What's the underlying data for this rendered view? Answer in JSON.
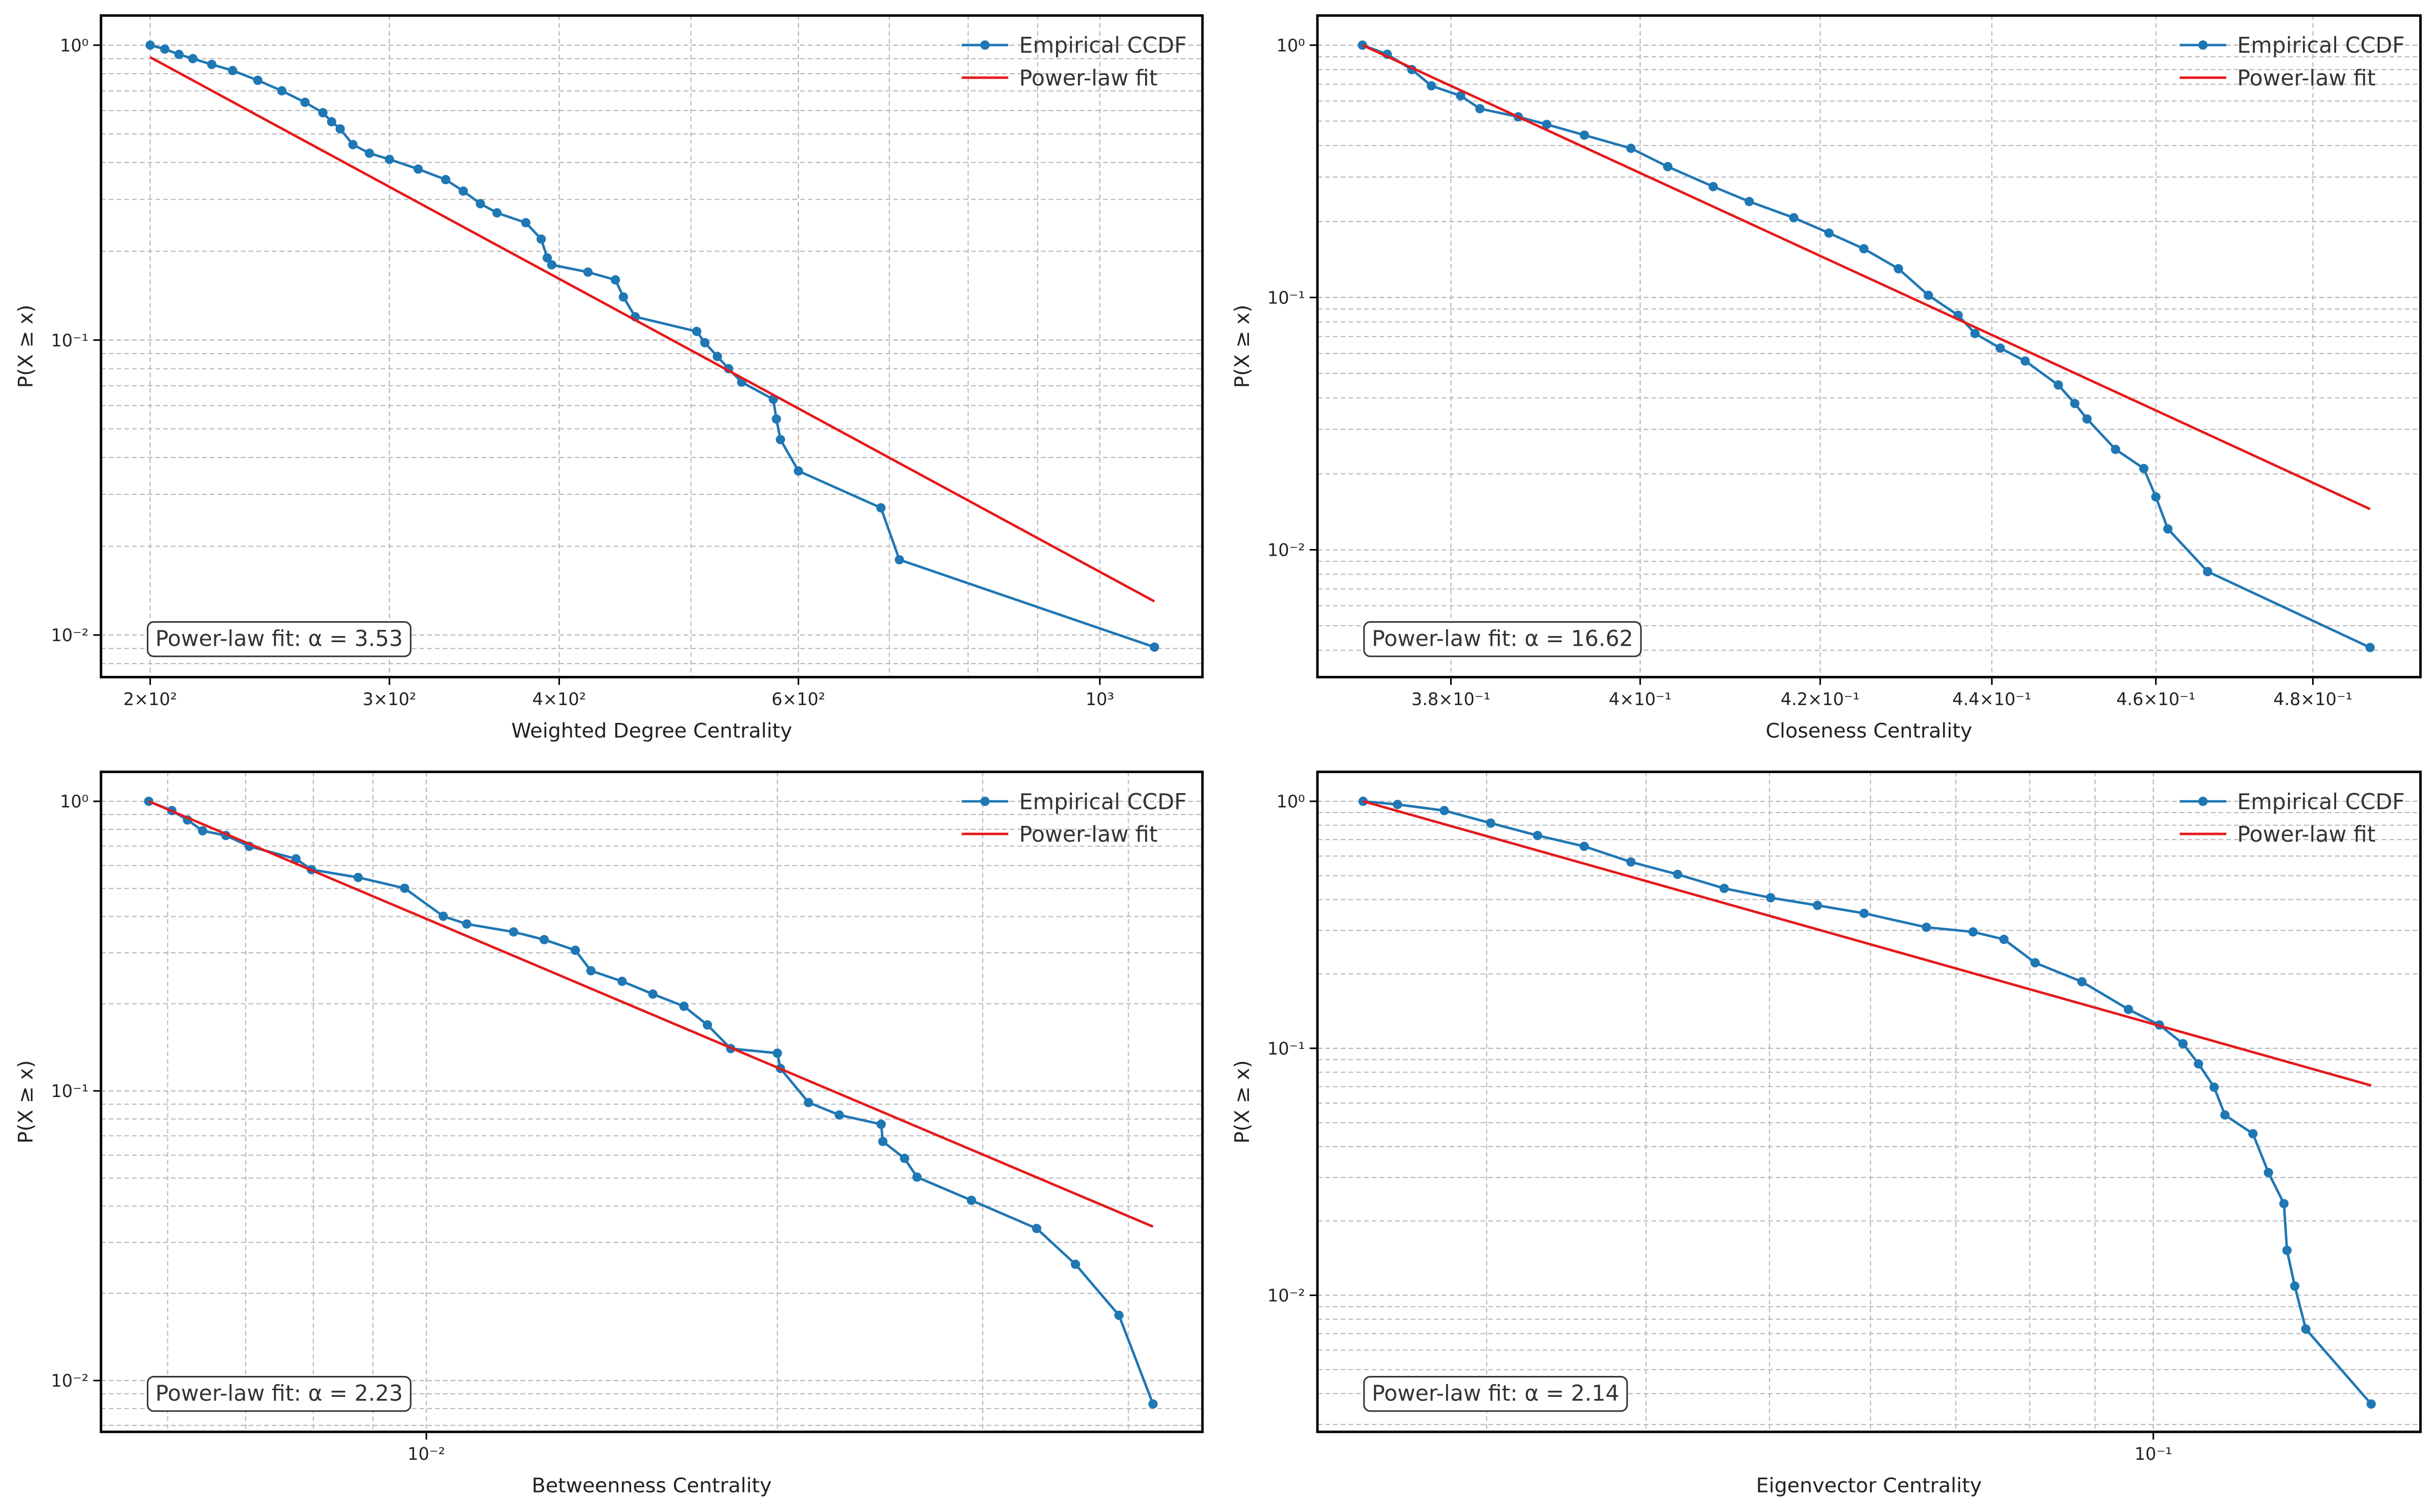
{
  "chart_data": [
    {
      "type": "line",
      "xscale": "log",
      "yscale": "log",
      "grid": true,
      "legend": "upper right",
      "xlabel": "Weighted Degree Centrality",
      "ylabel": "P(X ≥ x)",
      "annotation": "Power-law fit: α = 3.53",
      "xlim": [
        184,
        1190
      ],
      "ylim": [
        0.0072,
        1.26
      ],
      "xticks": [
        {
          "value": 200,
          "label": "2×10²"
        },
        {
          "value": 300,
          "label": "3×10²"
        },
        {
          "value": 400,
          "label": "4×10²"
        },
        {
          "value": 600,
          "label": "6×10²"
        },
        {
          "value": 1000,
          "label": "10³"
        }
      ],
      "yticks": [
        {
          "value": 1,
          "label": "10⁰"
        },
        {
          "value": 0.1,
          "label": "10⁻¹"
        },
        {
          "value": 0.01,
          "label": "10⁻²"
        }
      ],
      "series": [
        {
          "name": "Empirical CCDF",
          "color": "#1f77b4",
          "marker": true,
          "x": [
            200,
            205,
            210,
            215,
            222,
            230,
            240,
            250,
            260,
            268,
            272,
            276,
            282,
            290,
            300,
            315,
            330,
            340,
            350,
            360,
            378,
            388,
            392,
            395,
            420,
            440,
            446,
            455,
            505,
            512,
            523,
            533,
            545,
            575,
            578,
            582,
            600,
            690,
            712,
            1097
          ],
          "values": [
            1.0,
            0.97,
            0.93,
            0.9,
            0.86,
            0.82,
            0.76,
            0.7,
            0.64,
            0.59,
            0.55,
            0.52,
            0.46,
            0.43,
            0.41,
            0.38,
            0.35,
            0.32,
            0.29,
            0.27,
            0.25,
            0.22,
            0.19,
            0.18,
            0.17,
            0.16,
            0.14,
            0.12,
            0.107,
            0.098,
            0.088,
            0.08,
            0.072,
            0.063,
            0.054,
            0.046,
            0.036,
            0.027,
            0.018,
            0.0091
          ]
        },
        {
          "name": "Power-law fit",
          "color": "#e41a1c",
          "x": [
            200,
            1097
          ],
          "values": [
            0.91,
            0.013
          ]
        }
      ]
    },
    {
      "type": "line",
      "xscale": "log",
      "yscale": "log",
      "grid": true,
      "legend": "upper right",
      "xlabel": "Closeness Centrality",
      "ylabel": "P(X ≥ x)",
      "annotation": "Power-law fit: α = 16.62",
      "xlim": [
        0.3665,
        0.4942
      ],
      "ylim": [
        0.00313,
        1.31
      ],
      "xticks": [
        {
          "value": 0.38,
          "label": "3.8×10⁻¹"
        },
        {
          "value": 0.4,
          "label": "4×10⁻¹"
        },
        {
          "value": 0.42,
          "label": "4.2×10⁻¹"
        },
        {
          "value": 0.44,
          "label": "4.4×10⁻¹"
        },
        {
          "value": 0.46,
          "label": "4.6×10⁻¹"
        },
        {
          "value": 0.48,
          "label": "4.8×10⁻¹"
        }
      ],
      "yticks": [
        {
          "value": 1,
          "label": "10⁰"
        },
        {
          "value": 0.1,
          "label": "10⁻¹"
        },
        {
          "value": 0.01,
          "label": "10⁻²"
        }
      ],
      "series": [
        {
          "name": "Empirical CCDF",
          "color": "#1f77b4",
          "marker": true,
          "x": [
            0.371,
            0.3735,
            0.376,
            0.378,
            0.381,
            0.383,
            0.387,
            0.39,
            0.394,
            0.399,
            0.403,
            0.408,
            0.412,
            0.417,
            0.421,
            0.425,
            0.429,
            0.4325,
            0.436,
            0.438,
            0.441,
            0.444,
            0.448,
            0.45,
            0.4515,
            0.455,
            0.4585,
            0.46,
            0.4615,
            0.4665,
            0.4875
          ],
          "values": [
            1.0,
            0.92,
            0.8,
            0.69,
            0.63,
            0.56,
            0.52,
            0.485,
            0.44,
            0.39,
            0.33,
            0.275,
            0.24,
            0.207,
            0.18,
            0.156,
            0.13,
            0.102,
            0.085,
            0.072,
            0.063,
            0.056,
            0.045,
            0.038,
            0.033,
            0.025,
            0.021,
            0.0162,
            0.0121,
            0.0082,
            0.0041
          ]
        },
        {
          "name": "Power-law fit",
          "color": "#e41a1c",
          "x": [
            0.371,
            0.4875
          ],
          "values": [
            1.0,
            0.0145
          ]
        }
      ]
    },
    {
      "type": "line",
      "xscale": "log",
      "yscale": "log",
      "grid": true,
      "legend": "upper right",
      "xlabel": "Betweenness Centrality",
      "ylabel": "P(X ≥ x)",
      "annotation": "Power-law fit: α = 2.23",
      "xlim": [
        0.00526,
        0.0463
      ],
      "ylim": [
        0.00665,
        1.264
      ],
      "xticks": [
        {
          "value": 0.01,
          "label": "10⁻²"
        }
      ],
      "yticks": [
        {
          "value": 1,
          "label": "10⁰"
        },
        {
          "value": 0.1,
          "label": "10⁻¹"
        },
        {
          "value": 0.01,
          "label": "10⁻²"
        }
      ],
      "series": [
        {
          "name": "Empirical CCDF",
          "color": "#1f77b4",
          "marker": true,
          "x": [
            0.00578,
            0.00605,
            0.00624,
            0.00643,
            0.00673,
            0.00705,
            0.00773,
            0.00797,
            0.00874,
            0.00958,
            0.01034,
            0.01083,
            0.01188,
            0.01262,
            0.01342,
            0.01384,
            0.01472,
            0.01564,
            0.01663,
            0.01742,
            0.01824,
            0.02,
            0.02012,
            0.02127,
            0.0226,
            0.02455,
            0.02463,
            0.02571,
            0.02635,
            0.02934,
            0.03337,
            0.03603,
            0.03926,
            0.04199
          ],
          "values": [
            1.0,
            0.929,
            0.862,
            0.791,
            0.762,
            0.699,
            0.633,
            0.581,
            0.546,
            0.501,
            0.401,
            0.377,
            0.354,
            0.333,
            0.306,
            0.26,
            0.239,
            0.216,
            0.196,
            0.169,
            0.14,
            0.135,
            0.1196,
            0.0912,
            0.0826,
            0.0767,
            0.0669,
            0.0585,
            0.0504,
            0.0419,
            0.0335,
            0.0252,
            0.0168,
            0.0083
          ]
        },
        {
          "name": "Power-law fit",
          "color": "#e41a1c",
          "x": [
            0.00578,
            0.04199
          ],
          "values": [
            1.0,
            0.034
          ]
        }
      ]
    },
    {
      "type": "line",
      "xscale": "log",
      "yscale": "log",
      "grid": true,
      "legend": "upper right",
      "xlabel": "Eigenvector Centrality",
      "ylabel": "P(X ≥ x)",
      "annotation": "Power-law fit: α = 2.14",
      "xlim": [
        0.0221,
        0.162
      ],
      "ylim": [
        0.0028,
        1.316
      ],
      "xticks": [
        {
          "value": 0.1,
          "label": "10⁻¹"
        }
      ],
      "yticks": [
        {
          "value": 1,
          "label": "10⁰"
        },
        {
          "value": 0.1,
          "label": "10⁻¹"
        },
        {
          "value": 0.01,
          "label": "10⁻²"
        }
      ],
      "series": [
        {
          "name": "Empirical CCDF",
          "color": "#1f77b4",
          "marker": true,
          "x": [
            0.024,
            0.02554,
            0.02779,
            0.03022,
            0.03289,
            0.03578,
            0.03893,
            0.04235,
            0.04607,
            0.0501,
            0.05452,
            0.05931,
            0.06637,
            0.07221,
            0.07636,
            0.08078,
            0.0879,
            0.09561,
            0.1011,
            0.1055,
            0.1085,
            0.1116,
            0.1138,
            0.1197,
            0.1231,
            0.1266,
            0.1273,
            0.1291,
            0.1317,
            0.1482
          ],
          "values": [
            1.0,
            0.971,
            0.917,
            0.816,
            0.727,
            0.657,
            0.568,
            0.506,
            0.444,
            0.407,
            0.379,
            0.352,
            0.309,
            0.296,
            0.276,
            0.222,
            0.186,
            0.1437,
            0.1243,
            0.1044,
            0.0865,
            0.0696,
            0.0537,
            0.0451,
            0.0314,
            0.0235,
            0.0152,
            0.0109,
            0.0073,
            0.00363
          ]
        },
        {
          "name": "Power-law fit",
          "color": "#e41a1c",
          "x": [
            0.024,
            0.1482
          ],
          "values": [
            1.0,
            0.0707
          ]
        }
      ]
    }
  ]
}
